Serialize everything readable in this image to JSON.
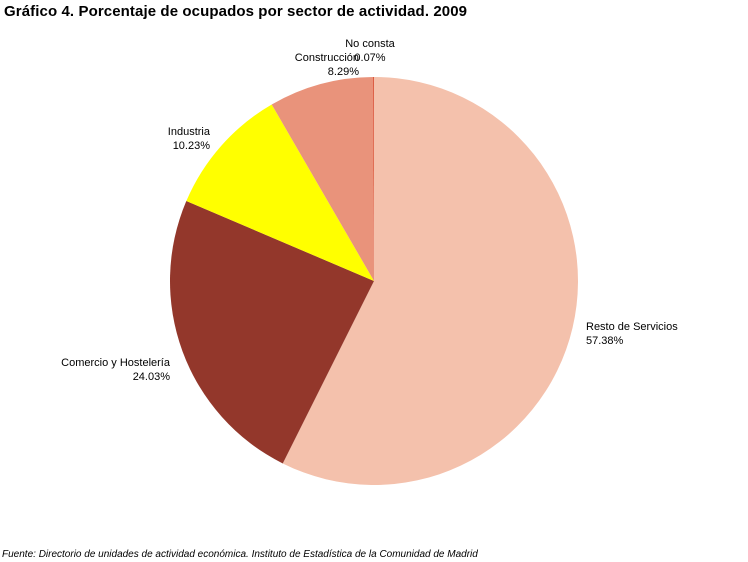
{
  "chart_data": {
    "type": "pie",
    "title": "Gráfico 4. Porcentaje de ocupados por sector de actividad. 2009",
    "source": "Fuente: Directorio de unidades de actividad económica. Instituto de Estadística de la Comunidad de Madrid",
    "slices": [
      {
        "label": "Resto de Servicios",
        "value": 57.38,
        "value_text": "57.38%",
        "color": "#F4C1AC"
      },
      {
        "label": "Comercio y Hostelería",
        "value": 24.03,
        "value_text": "24.03%",
        "color": "#93372B"
      },
      {
        "label": "Industria",
        "value": 10.23,
        "value_text": "10.23%",
        "color": "#FFFF00"
      },
      {
        "label": "Construcción",
        "value": 8.29,
        "value_text": "8.29%",
        "color": "#E9937B"
      },
      {
        "label": "No consta",
        "value": 0.07,
        "value_text": "0.07%",
        "color": "#D84A2E"
      }
    ],
    "start": "12 o'clock",
    "direction": "clockwise",
    "legend": "none",
    "labels": "outside"
  }
}
